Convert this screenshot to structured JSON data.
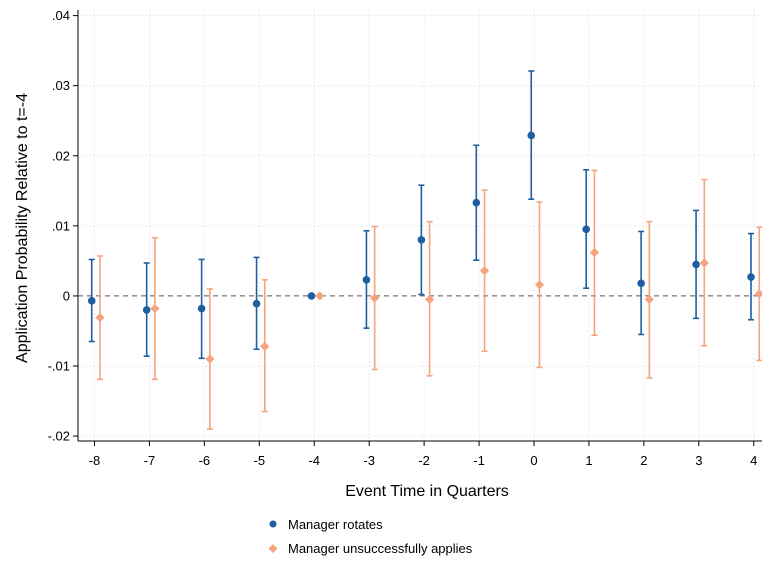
{
  "chart_data": {
    "type": "scatter",
    "xlabel": "Event Time in Quarters",
    "ylabel": "Application Probability Relative to t=-4",
    "x": [
      -8,
      -7,
      -6,
      -5,
      -4,
      -3,
      -2,
      -1,
      0,
      1,
      2,
      3,
      4
    ],
    "x_ticks": [
      "-8",
      "-7",
      "-6",
      "-5",
      "-4",
      "-3",
      "-2",
      "-1",
      "0",
      "1",
      "2",
      "3",
      "4"
    ],
    "y_ticks": [
      {
        "value": -0.02,
        "label": "-.02"
      },
      {
        "value": -0.01,
        "label": "-.01"
      },
      {
        "value": 0,
        "label": "0"
      },
      {
        "value": 0.01,
        "label": ".01"
      },
      {
        "value": 0.02,
        "label": ".02"
      },
      {
        "value": 0.03,
        "label": ".03"
      },
      {
        "value": 0.04,
        "label": ".04"
      }
    ],
    "ylim": [
      -0.0207,
      0.0408
    ],
    "xlim": [
      -8.3,
      4.15
    ],
    "grid": true,
    "reference_line_y": 0,
    "legend_position": "bottom",
    "series": [
      {
        "name": "Manager rotates",
        "marker": "circle",
        "color": "#1f5fa0",
        "x_offset": -0.05,
        "values": [
          -0.0007,
          -0.002,
          -0.0018,
          -0.0011,
          0.0,
          0.0023,
          0.008,
          0.0133,
          0.0229,
          0.0095,
          0.0018,
          0.0045,
          0.0027
        ],
        "ci_low": [
          -0.0065,
          -0.0086,
          -0.0089,
          -0.0076,
          0.0,
          -0.0046,
          0.0002,
          0.0051,
          0.0138,
          0.0011,
          -0.0055,
          -0.0032,
          -0.0034
        ],
        "ci_high": [
          0.0052,
          0.0047,
          0.0052,
          0.0055,
          0.0,
          0.0093,
          0.0158,
          0.0215,
          0.0321,
          0.018,
          0.0092,
          0.0122,
          0.0089
        ]
      },
      {
        "name": "Manager unsuccessfully applies",
        "marker": "diamond",
        "color": "#f4a57f",
        "x_offset": 0.1,
        "values": [
          -0.0031,
          -0.0018,
          -0.009,
          -0.0072,
          0.0,
          -0.0003,
          -0.0005,
          0.0036,
          0.0016,
          0.0062,
          -0.0005,
          0.0047,
          0.0003
        ],
        "ci_low": [
          -0.0119,
          -0.0119,
          -0.019,
          -0.0165,
          0.0,
          -0.0105,
          -0.0114,
          -0.0079,
          -0.0102,
          -0.0056,
          -0.0117,
          -0.0071,
          -0.0092
        ],
        "ci_high": [
          0.0057,
          0.0083,
          0.001,
          0.0023,
          0.0,
          0.0099,
          0.0106,
          0.0151,
          0.0134,
          0.0179,
          0.0106,
          0.0166,
          0.0098
        ]
      }
    ]
  }
}
